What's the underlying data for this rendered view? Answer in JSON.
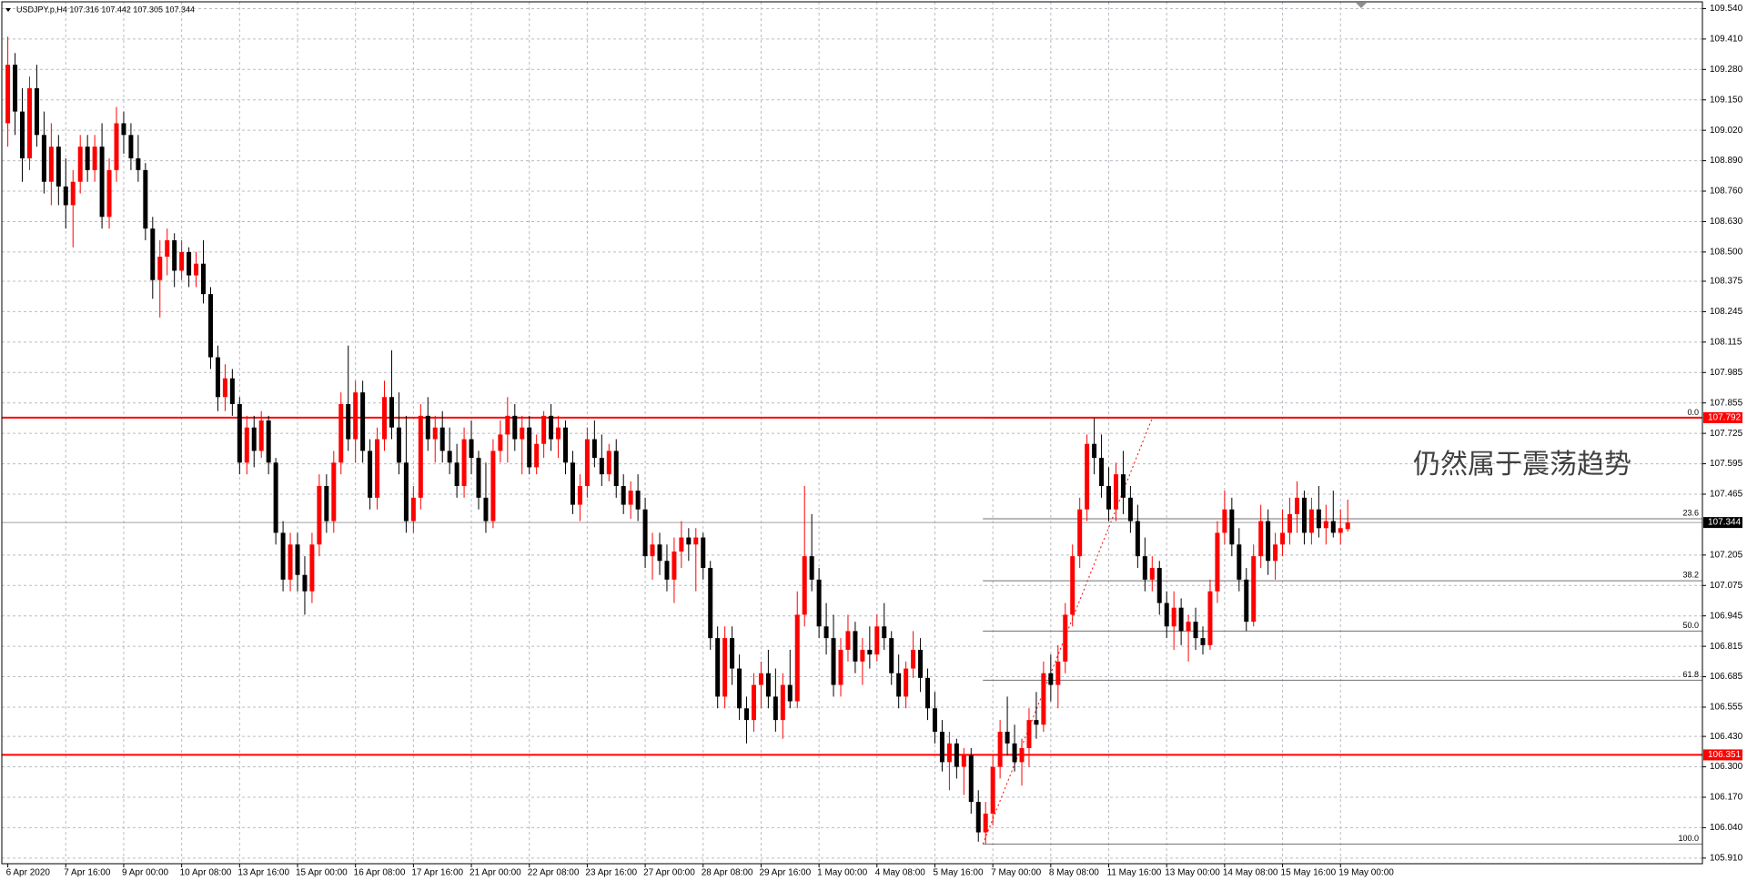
{
  "chart_data": {
    "type": "candlestick",
    "title": "USDJPY.p,H4  107.316 107.442 107.305 107.344",
    "annotation": "仍然属于震荡趋势",
    "up_color": "#ff0000",
    "down_color": "#000000",
    "grid": true,
    "ylim": [
      105.886,
      109.569
    ],
    "yticks": [
      {
        "value": 109.54,
        "label": "109.540"
      },
      {
        "value": 109.41,
        "label": "109.410"
      },
      {
        "value": 109.28,
        "label": "109.280"
      },
      {
        "value": 109.15,
        "label": "109.150"
      },
      {
        "value": 109.02,
        "label": "109.020"
      },
      {
        "value": 108.89,
        "label": "108.890"
      },
      {
        "value": 108.76,
        "label": "108.760"
      },
      {
        "value": 108.63,
        "label": "108.630"
      },
      {
        "value": 108.5,
        "label": "108.500"
      },
      108.375,
      108.245,
      108.115,
      107.985,
      107.855,
      107.725,
      107.595,
      107.465,
      107.205,
      107.075,
      106.945,
      106.815,
      106.685,
      106.555,
      {
        "value": 106.43,
        "label": "106.430"
      },
      {
        "value": 106.3,
        "label": "106.300"
      },
      {
        "value": 106.17,
        "label": "106.170"
      },
      {
        "value": 106.04,
        "label": "106.040"
      },
      {
        "value": 105.91,
        "label": "105.910"
      }
    ],
    "hlines": [
      {
        "value": 107.792,
        "color": "#ff0000",
        "box": "#ff0000"
      },
      {
        "value": 106.351,
        "color": "#ff0000",
        "box": "#ff0000"
      },
      {
        "value": 107.344,
        "color": "#a0a0a8",
        "box": "#000000"
      }
    ],
    "fibo": {
      "color": "#707070",
      "levels": [
        {
          "label": "0.0",
          "price": 107.79
        },
        {
          "label": "23.6",
          "price": 107.36
        },
        {
          "label": "38.2",
          "price": 107.095
        },
        {
          "label": "50.0",
          "price": 106.88
        },
        {
          "label": "61.8",
          "price": 106.67
        },
        {
          "label": "100.0",
          "price": 105.97
        }
      ]
    },
    "categories": [
      "6 Apr 2020",
      null,
      null,
      null,
      null,
      null,
      null,
      null,
      "7 Apr 16:00",
      null,
      null,
      null,
      null,
      null,
      null,
      null,
      "9 Apr 00:00",
      null,
      null,
      null,
      null,
      null,
      null,
      null,
      "10 Apr 08:00",
      null,
      null,
      null,
      null,
      null,
      null,
      null,
      "13 Apr 16:00",
      null,
      null,
      null,
      null,
      null,
      null,
      null,
      "15 Apr 00:00",
      null,
      null,
      null,
      null,
      null,
      null,
      null,
      "16 Apr 08:00",
      null,
      null,
      null,
      null,
      null,
      null,
      null,
      "17 Apr 16:00",
      null,
      null,
      null,
      null,
      null,
      null,
      null,
      "21 Apr 00:00",
      null,
      null,
      null,
      null,
      null,
      null,
      null,
      "22 Apr 08:00",
      null,
      null,
      null,
      null,
      null,
      null,
      null,
      "23 Apr 16:00",
      null,
      null,
      null,
      null,
      null,
      null,
      null,
      "27 Apr 00:00",
      null,
      null,
      null,
      null,
      null,
      null,
      null,
      "28 Apr 08:00",
      null,
      null,
      null,
      null,
      null,
      null,
      null,
      "29 Apr 16:00",
      null,
      null,
      null,
      null,
      null,
      null,
      null,
      "1 May 00:00",
      null,
      null,
      null,
      null,
      null,
      null,
      null,
      "4 May 08:00",
      null,
      null,
      null,
      null,
      null,
      null,
      null,
      "5 May 16:00",
      null,
      null,
      null,
      null,
      null,
      null,
      null,
      "7 May 00:00",
      null,
      null,
      null,
      null,
      null,
      null,
      null,
      "8 May 08:00",
      null,
      null,
      null,
      null,
      null,
      null,
      null,
      "11 May 16:00",
      null,
      null,
      null,
      null,
      null,
      null,
      null,
      "13 May 00:00",
      null,
      null,
      null,
      null,
      null,
      null,
      null,
      "14 May 08:00",
      null,
      null,
      null,
      null,
      null,
      null,
      null,
      "15 May 16:00",
      null,
      null,
      null,
      null,
      null,
      null,
      null,
      "19 May 00:00",
      null
    ],
    "values": [
      [
        109.05,
        109.42,
        108.95,
        109.3
      ],
      [
        109.3,
        109.35,
        109,
        109.1
      ],
      [
        109.1,
        109.2,
        108.8,
        108.9
      ],
      [
        108.9,
        109.25,
        108.85,
        109.2
      ],
      [
        109.2,
        109.3,
        108.95,
        109
      ],
      [
        109,
        109.1,
        108.75,
        108.8
      ],
      [
        108.8,
        109.05,
        108.7,
        108.95
      ],
      [
        108.95,
        109,
        108.7,
        108.78
      ],
      [
        108.78,
        108.9,
        108.6,
        108.7
      ],
      [
        108.7,
        108.85,
        108.52,
        108.8
      ],
      [
        108.8,
        109,
        108.75,
        108.95
      ],
      [
        108.95,
        109,
        108.8,
        108.85
      ],
      [
        108.85,
        109,
        108.8,
        108.95
      ],
      [
        108.95,
        109.05,
        108.6,
        108.65
      ],
      [
        108.65,
        108.9,
        108.6,
        108.85
      ],
      [
        108.85,
        109.12,
        108.8,
        109.05
      ],
      [
        109.05,
        109.1,
        108.92,
        109
      ],
      [
        109,
        109.05,
        108.85,
        108.9
      ],
      [
        108.9,
        109,
        108.8,
        108.85
      ],
      [
        108.85,
        108.88,
        108.55,
        108.6
      ],
      [
        108.6,
        108.65,
        108.3,
        108.38
      ],
      [
        108.38,
        108.55,
        108.22,
        108.48
      ],
      [
        108.48,
        108.6,
        108.4,
        108.55
      ],
      [
        108.55,
        108.58,
        108.35,
        108.42
      ],
      [
        108.42,
        108.55,
        108.38,
        108.5
      ],
      [
        108.5,
        108.52,
        108.35,
        108.4
      ],
      [
        108.4,
        108.5,
        108.35,
        108.45
      ],
      [
        108.45,
        108.55,
        108.28,
        108.32
      ],
      [
        108.32,
        108.35,
        108,
        108.05
      ],
      [
        108.05,
        108.1,
        107.82,
        107.88
      ],
      [
        107.88,
        108.02,
        107.82,
        107.96
      ],
      [
        107.96,
        108,
        107.8,
        107.85
      ],
      [
        107.85,
        107.88,
        107.55,
        107.6
      ],
      [
        107.6,
        107.8,
        107.55,
        107.75
      ],
      [
        107.75,
        107.8,
        107.58,
        107.65
      ],
      [
        107.65,
        107.82,
        107.62,
        107.78
      ],
      [
        107.78,
        107.8,
        107.55,
        107.6
      ],
      [
        107.6,
        107.62,
        107.25,
        107.3
      ],
      [
        107.3,
        107.35,
        107.05,
        107.1
      ],
      [
        107.1,
        107.3,
        107.05,
        107.25
      ],
      [
        107.25,
        107.3,
        107.05,
        107.12
      ],
      [
        107.12,
        107.2,
        106.95,
        107.05
      ],
      [
        107.05,
        107.3,
        107,
        107.25
      ],
      [
        107.25,
        107.55,
        107.2,
        107.5
      ],
      [
        107.5,
        107.55,
        107.3,
        107.35
      ],
      [
        107.35,
        107.65,
        107.3,
        107.6
      ],
      [
        107.6,
        107.9,
        107.55,
        107.85
      ],
      [
        107.85,
        108.1,
        107.65,
        107.7
      ],
      [
        107.7,
        107.95,
        107.6,
        107.9
      ],
      [
        107.9,
        107.95,
        107.6,
        107.65
      ],
      [
        107.65,
        107.7,
        107.4,
        107.45
      ],
      [
        107.45,
        107.75,
        107.4,
        107.7
      ],
      [
        107.7,
        107.95,
        107.65,
        107.88
      ],
      [
        107.88,
        108.08,
        107.7,
        107.75
      ],
      [
        107.75,
        107.9,
        107.55,
        107.6
      ],
      [
        107.6,
        107.8,
        107.3,
        107.35
      ],
      [
        107.35,
        107.5,
        107.3,
        107.45
      ],
      [
        107.45,
        107.85,
        107.4,
        107.8
      ],
      [
        107.8,
        107.88,
        107.65,
        107.7
      ],
      [
        107.7,
        107.8,
        107.6,
        107.75
      ],
      [
        107.75,
        107.82,
        107.6,
        107.65
      ],
      [
        107.65,
        107.75,
        107.55,
        107.6
      ],
      [
        107.6,
        107.68,
        107.45,
        107.5
      ],
      [
        107.5,
        107.75,
        107.45,
        107.7
      ],
      [
        107.7,
        107.78,
        107.55,
        107.62
      ],
      [
        107.62,
        107.65,
        107.4,
        107.45
      ],
      [
        107.45,
        107.6,
        107.3,
        107.35
      ],
      [
        107.35,
        107.7,
        107.32,
        107.65
      ],
      [
        107.65,
        107.78,
        107.6,
        107.72
      ],
      [
        107.72,
        107.88,
        107.6,
        107.8
      ],
      [
        107.8,
        107.85,
        107.65,
        107.7
      ],
      [
        107.7,
        107.8,
        107.55,
        107.75
      ],
      [
        107.75,
        107.8,
        107.55,
        107.58
      ],
      [
        107.58,
        107.72,
        107.55,
        107.68
      ],
      [
        107.68,
        107.82,
        107.62,
        107.8
      ],
      [
        107.8,
        107.85,
        107.65,
        107.7
      ],
      [
        107.7,
        107.8,
        107.62,
        107.75
      ],
      [
        107.75,
        107.78,
        107.55,
        107.6
      ],
      [
        107.6,
        107.65,
        107.38,
        107.42
      ],
      [
        107.42,
        107.55,
        107.35,
        107.5
      ],
      [
        107.5,
        107.75,
        107.45,
        107.7
      ],
      [
        107.7,
        107.78,
        107.58,
        107.62
      ],
      [
        107.62,
        107.72,
        107.5,
        107.55
      ],
      [
        107.55,
        107.68,
        107.52,
        107.65
      ],
      [
        107.65,
        107.7,
        107.45,
        107.5
      ],
      [
        107.5,
        107.55,
        107.38,
        107.42
      ],
      [
        107.42,
        107.52,
        107.36,
        107.48
      ],
      [
        107.48,
        107.55,
        107.35,
        107.4
      ],
      [
        107.4,
        107.45,
        107.15,
        107.2
      ],
      [
        107.2,
        107.3,
        107.1,
        107.25
      ],
      [
        107.25,
        107.3,
        107.12,
        107.18
      ],
      [
        107.18,
        107.25,
        107.05,
        107.1
      ],
      [
        107.1,
        107.28,
        107,
        107.22
      ],
      [
        107.22,
        107.35,
        107.15,
        107.28
      ],
      [
        107.28,
        107.32,
        107.18,
        107.25
      ],
      [
        107.25,
        107.32,
        107.05,
        107.28
      ],
      [
        107.28,
        107.3,
        107.1,
        107.15
      ],
      [
        107.15,
        107.18,
        106.8,
        106.85
      ],
      [
        106.85,
        106.9,
        106.55,
        106.6
      ],
      [
        106.6,
        106.9,
        106.55,
        106.85
      ],
      [
        106.85,
        106.9,
        106.65,
        106.72
      ],
      [
        106.72,
        106.78,
        106.5,
        106.55
      ],
      [
        106.55,
        106.6,
        106.4,
        106.5
      ],
      [
        106.5,
        106.7,
        106.45,
        106.65
      ],
      [
        106.65,
        106.75,
        106.55,
        106.7
      ],
      [
        106.7,
        106.8,
        106.55,
        106.6
      ],
      [
        106.6,
        106.72,
        106.45,
        106.5
      ],
      [
        106.5,
        106.7,
        106.42,
        106.65
      ],
      [
        106.65,
        106.8,
        106.55,
        106.58
      ],
      [
        106.58,
        107.05,
        106.55,
        106.95
      ],
      [
        106.95,
        107.5,
        106.9,
        107.2
      ],
      [
        107.2,
        107.38,
        107.05,
        107.1
      ],
      [
        107.1,
        107.15,
        106.85,
        106.9
      ],
      [
        106.9,
        107,
        106.78,
        106.85
      ],
      [
        106.85,
        106.95,
        106.6,
        106.65
      ],
      [
        106.65,
        106.85,
        106.6,
        106.8
      ],
      [
        106.8,
        106.95,
        106.75,
        106.88
      ],
      [
        106.88,
        106.92,
        106.7,
        106.75
      ],
      [
        106.75,
        106.85,
        106.65,
        106.8
      ],
      [
        106.8,
        106.9,
        106.72,
        106.78
      ],
      [
        106.78,
        106.95,
        106.75,
        106.9
      ],
      [
        106.9,
        107,
        106.8,
        106.85
      ],
      [
        106.85,
        106.88,
        106.65,
        106.7
      ],
      [
        106.7,
        106.78,
        106.55,
        106.6
      ],
      [
        106.6,
        106.75,
        106.55,
        106.72
      ],
      [
        106.72,
        106.88,
        106.68,
        106.8
      ],
      [
        106.8,
        106.85,
        106.62,
        106.68
      ],
      [
        106.68,
        106.72,
        106.5,
        106.55
      ],
      [
        106.55,
        106.62,
        106.4,
        106.45
      ],
      [
        106.45,
        106.5,
        106.28,
        106.32
      ],
      [
        106.32,
        106.45,
        106.2,
        106.4
      ],
      [
        106.4,
        106.42,
        106.25,
        106.3
      ],
      [
        106.3,
        106.38,
        106.18,
        106.35
      ],
      [
        106.35,
        106.38,
        106.1,
        106.15
      ],
      [
        106.15,
        106.2,
        105.98,
        106.02
      ],
      [
        106.02,
        106.15,
        105.97,
        106.1
      ],
      [
        106.1,
        106.35,
        106.05,
        106.3
      ],
      [
        106.3,
        106.5,
        106.25,
        106.45
      ],
      [
        106.45,
        106.6,
        106.35,
        106.4
      ],
      [
        106.4,
        106.48,
        106.28,
        106.32
      ],
      [
        106.32,
        106.42,
        106.22,
        106.38
      ],
      [
        106.38,
        106.55,
        106.3,
        106.5
      ],
      [
        106.5,
        106.62,
        106.42,
        106.48
      ],
      [
        106.48,
        106.75,
        106.45,
        106.7
      ],
      [
        106.7,
        106.78,
        106.58,
        106.65
      ],
      [
        106.65,
        106.82,
        106.55,
        106.75
      ],
      [
        106.75,
        107,
        106.7,
        106.95
      ],
      [
        106.95,
        107.25,
        106.9,
        107.2
      ],
      [
        107.2,
        107.45,
        107.15,
        107.4
      ],
      [
        107.4,
        107.72,
        107.35,
        107.68
      ],
      [
        107.68,
        107.79,
        107.55,
        107.62
      ],
      [
        107.62,
        107.72,
        107.45,
        107.5
      ],
      [
        107.5,
        107.58,
        107.35,
        107.4
      ],
      [
        107.4,
        107.6,
        107.35,
        107.55
      ],
      [
        107.55,
        107.65,
        107.38,
        107.45
      ],
      [
        107.45,
        107.5,
        107.3,
        107.35
      ],
      [
        107.35,
        107.42,
        107.15,
        107.2
      ],
      [
        107.2,
        107.28,
        107.05,
        107.1
      ],
      [
        107.1,
        107.2,
        107.05,
        107.15
      ],
      [
        107.15,
        107.18,
        106.95,
        107
      ],
      [
        107,
        107.05,
        106.85,
        106.9
      ],
      [
        106.9,
        107.05,
        106.8,
        106.98
      ],
      [
        106.98,
        107.02,
        106.82,
        106.88
      ],
      [
        106.88,
        106.95,
        106.75,
        106.92
      ],
      [
        106.92,
        106.98,
        106.8,
        106.85
      ],
      [
        106.85,
        106.9,
        106.78,
        106.82
      ],
      [
        106.82,
        107.1,
        106.8,
        107.05
      ],
      [
        107.05,
        107.35,
        107,
        107.3
      ],
      [
        107.3,
        107.48,
        107.25,
        107.4
      ],
      [
        107.4,
        107.45,
        107.2,
        107.25
      ],
      [
        107.25,
        107.32,
        107.05,
        107.1
      ],
      [
        107.1,
        107.15,
        106.88,
        106.92
      ],
      [
        106.92,
        107.25,
        106.9,
        107.2
      ],
      [
        107.2,
        107.42,
        107.15,
        107.35
      ],
      [
        107.35,
        107.4,
        107.12,
        107.18
      ],
      [
        107.18,
        107.3,
        107.1,
        107.25
      ],
      [
        107.25,
        107.4,
        107.2,
        107.3
      ],
      [
        107.3,
        107.45,
        107.25,
        107.38
      ],
      [
        107.38,
        107.52,
        107.3,
        107.45
      ],
      [
        107.45,
        107.48,
        107.25,
        107.3
      ],
      [
        107.3,
        107.45,
        107.25,
        107.4
      ],
      [
        107.4,
        107.5,
        107.28,
        107.32
      ],
      [
        107.32,
        107.42,
        107.25,
        107.35
      ],
      [
        107.35,
        107.48,
        107.28,
        107.3
      ],
      [
        107.3,
        107.4,
        107.25,
        107.32
      ],
      [
        107.316,
        107.442,
        107.305,
        107.344
      ]
    ]
  }
}
